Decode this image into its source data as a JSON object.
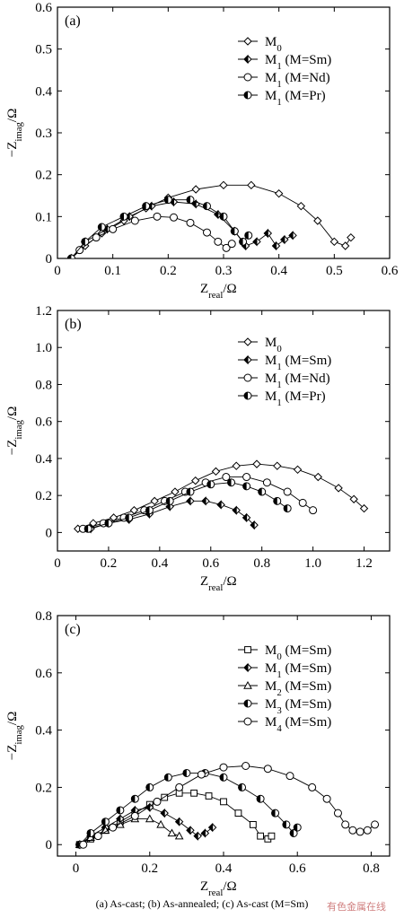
{
  "caption": "(a)   As-cast; (b) As-annealed; (c) As-cast (M=Sm)",
  "watermark": "有色金属在线",
  "chart_data": [
    {
      "type": "line",
      "panel_label": "(a)",
      "xlim": [
        0,
        0.6
      ],
      "ylim": [
        0,
        0.6
      ],
      "xticks": [
        "0",
        "0.1",
        "0.2",
        "0.3",
        "0.4",
        "0.5",
        "0.6"
      ],
      "yticks": [
        "0",
        "0.1",
        "0.2",
        "0.3",
        "0.4",
        "0.5",
        "0.6"
      ],
      "xtick_vals": [
        0,
        0.1,
        0.2,
        0.3,
        0.4,
        0.5,
        0.6
      ],
      "ytick_vals": [
        0,
        0.1,
        0.2,
        0.3,
        0.4,
        0.5,
        0.6
      ],
      "xlabel": {
        "main": "Z",
        "sub": "real",
        "tail": "/Ω"
      },
      "ylabel": {
        "main": "−Z",
        "sub": "imag",
        "tail": "/Ω"
      },
      "legend_position": "top-right",
      "series": [
        {
          "name": "M0",
          "legend": {
            "main": "M",
            "sub": "0",
            "tail": ""
          },
          "marker": "diamond",
          "x": [
            0.025,
            0.05,
            0.08,
            0.12,
            0.16,
            0.2,
            0.25,
            0.3,
            0.35,
            0.4,
            0.44,
            0.47,
            0.5,
            0.52,
            0.53
          ],
          "y": [
            0.0,
            0.03,
            0.06,
            0.09,
            0.12,
            0.145,
            0.165,
            0.175,
            0.175,
            0.155,
            0.125,
            0.09,
            0.04,
            0.03,
            0.05
          ]
        },
        {
          "name": "M1 (M=Sm)",
          "legend": {
            "main": "M",
            "sub": "1",
            "tail": " (M=Sm)"
          },
          "marker": "diamond-half",
          "x": [
            0.025,
            0.05,
            0.09,
            0.13,
            0.17,
            0.21,
            0.25,
            0.29,
            0.32,
            0.34,
            0.36,
            0.38,
            0.395,
            0.41,
            0.425
          ],
          "y": [
            0.0,
            0.04,
            0.07,
            0.1,
            0.125,
            0.135,
            0.13,
            0.105,
            0.065,
            0.03,
            0.04,
            0.06,
            0.03,
            0.045,
            0.055
          ]
        },
        {
          "name": "M1 (M=Nd)",
          "legend": {
            "main": "M",
            "sub": "1",
            "tail": " (M=Nd)"
          },
          "marker": "circle",
          "x": [
            0.025,
            0.04,
            0.07,
            0.1,
            0.14,
            0.18,
            0.21,
            0.24,
            0.27,
            0.29,
            0.305,
            0.315
          ],
          "y": [
            0.0,
            0.02,
            0.05,
            0.07,
            0.09,
            0.1,
            0.098,
            0.085,
            0.062,
            0.04,
            0.025,
            0.035
          ]
        },
        {
          "name": "M1 (M=Pr)",
          "legend": {
            "main": "M",
            "sub": "1",
            "tail": " (M=Pr)"
          },
          "marker": "circle-half",
          "x": [
            0.025,
            0.05,
            0.08,
            0.12,
            0.16,
            0.2,
            0.24,
            0.27,
            0.3,
            0.32,
            0.335,
            0.345
          ],
          "y": [
            0.0,
            0.04,
            0.075,
            0.1,
            0.125,
            0.14,
            0.14,
            0.125,
            0.1,
            0.065,
            0.04,
            0.055
          ]
        }
      ]
    },
    {
      "type": "line",
      "panel_label": "(b)",
      "xlim": [
        0,
        1.3
      ],
      "ylim": [
        -0.1,
        1.2
      ],
      "xticks": [
        "0",
        "0.2",
        "0.4",
        "0.6",
        "0.8",
        "1.0",
        "1.2"
      ],
      "yticks": [
        "0",
        "0.2",
        "0.4",
        "0.6",
        "0.8",
        "1.0",
        "1.2"
      ],
      "xtick_vals": [
        0,
        0.2,
        0.4,
        0.6,
        0.8,
        1.0,
        1.2
      ],
      "ytick_vals": [
        0,
        0.2,
        0.4,
        0.6,
        0.8,
        1.0,
        1.2
      ],
      "xlabel": {
        "main": "Z",
        "sub": "real",
        "tail": "/Ω"
      },
      "ylabel": {
        "main": "−Z",
        "sub": "imag",
        "tail": "/Ω"
      },
      "legend_position": "top-right",
      "series": [
        {
          "name": "M0",
          "legend": {
            "main": "M",
            "sub": "0",
            "tail": ""
          },
          "marker": "diamond",
          "x": [
            0.08,
            0.14,
            0.22,
            0.3,
            0.38,
            0.46,
            0.54,
            0.62,
            0.7,
            0.78,
            0.86,
            0.94,
            1.02,
            1.1,
            1.16,
            1.2
          ],
          "y": [
            0.02,
            0.05,
            0.08,
            0.12,
            0.17,
            0.22,
            0.28,
            0.33,
            0.36,
            0.37,
            0.36,
            0.34,
            0.3,
            0.24,
            0.18,
            0.13
          ]
        },
        {
          "name": "M1 (M=Sm)",
          "legend": {
            "main": "M",
            "sub": "1",
            "tail": " (M=Sm)"
          },
          "marker": "diamond-half",
          "x": [
            0.13,
            0.2,
            0.28,
            0.36,
            0.44,
            0.52,
            0.58,
            0.64,
            0.7,
            0.74,
            0.77
          ],
          "y": [
            0.02,
            0.05,
            0.07,
            0.1,
            0.14,
            0.17,
            0.17,
            0.15,
            0.12,
            0.08,
            0.04
          ]
        },
        {
          "name": "M1 (M=Nd)",
          "legend": {
            "main": "M",
            "sub": "1",
            "tail": " (M=Nd)"
          },
          "marker": "circle",
          "x": [
            0.1,
            0.18,
            0.26,
            0.34,
            0.42,
            0.5,
            0.58,
            0.66,
            0.74,
            0.82,
            0.9,
            0.96,
            1.0
          ],
          "y": [
            0.02,
            0.05,
            0.08,
            0.12,
            0.17,
            0.22,
            0.27,
            0.3,
            0.3,
            0.27,
            0.22,
            0.16,
            0.12
          ]
        },
        {
          "name": "M1 (M=Pr)",
          "legend": {
            "main": "M",
            "sub": "1",
            "tail": " (M=Pr)"
          },
          "marker": "circle-half",
          "x": [
            0.12,
            0.2,
            0.28,
            0.36,
            0.44,
            0.52,
            0.6,
            0.68,
            0.74,
            0.8,
            0.86,
            0.9
          ],
          "y": [
            0.02,
            0.05,
            0.08,
            0.12,
            0.17,
            0.22,
            0.26,
            0.27,
            0.25,
            0.22,
            0.17,
            0.13
          ]
        }
      ]
    },
    {
      "type": "line",
      "panel_label": "(c)",
      "xlim": [
        -0.05,
        0.85
      ],
      "ylim": [
        -0.04,
        0.8
      ],
      "xticks": [
        "0",
        "0.2",
        "0.4",
        "0.6",
        "0.8"
      ],
      "yticks": [
        "0",
        "0.2",
        "0.4",
        "0.6",
        "0.8"
      ],
      "xtick_vals": [
        0,
        0.2,
        0.4,
        0.6,
        0.8
      ],
      "ytick_vals": [
        0,
        0.2,
        0.4,
        0.6,
        0.8
      ],
      "xlabel": {
        "main": "Z",
        "sub": "real",
        "tail": "/Ω"
      },
      "ylabel": {
        "main": "−Z",
        "sub": "imag",
        "tail": "/Ω"
      },
      "legend_position": "right",
      "series": [
        {
          "name": "M0 (M=Sm)",
          "legend": {
            "main": "M",
            "sub": "0",
            "tail": " (M=Sm)"
          },
          "marker": "square",
          "x": [
            0.01,
            0.04,
            0.08,
            0.12,
            0.16,
            0.2,
            0.24,
            0.28,
            0.32,
            0.36,
            0.4,
            0.44,
            0.48,
            0.5,
            0.52,
            0.53
          ],
          "y": [
            0.0,
            0.02,
            0.05,
            0.08,
            0.11,
            0.14,
            0.165,
            0.18,
            0.18,
            0.17,
            0.15,
            0.11,
            0.07,
            0.03,
            0.02,
            0.03
          ]
        },
        {
          "name": "M1 (M=Sm)",
          "legend": {
            "main": "M",
            "sub": "1",
            "tail": " (M=Sm)"
          },
          "marker": "diamond-half",
          "x": [
            0.01,
            0.04,
            0.08,
            0.12,
            0.16,
            0.2,
            0.24,
            0.28,
            0.31,
            0.33,
            0.35,
            0.37
          ],
          "y": [
            0.0,
            0.03,
            0.06,
            0.09,
            0.12,
            0.13,
            0.11,
            0.08,
            0.05,
            0.03,
            0.04,
            0.06
          ]
        },
        {
          "name": "M2 (M=Sm)",
          "legend": {
            "main": "M",
            "sub": "2",
            "tail": " (M=Sm)"
          },
          "marker": "triangle",
          "x": [
            0.01,
            0.04,
            0.08,
            0.12,
            0.16,
            0.2,
            0.23,
            0.26,
            0.28
          ],
          "y": [
            0.0,
            0.025,
            0.05,
            0.07,
            0.09,
            0.09,
            0.07,
            0.04,
            0.03
          ]
        },
        {
          "name": "M3 (M=Sm)",
          "legend": {
            "main": "M",
            "sub": "3",
            "tail": " (M=Sm)"
          },
          "marker": "circle-half",
          "x": [
            0.01,
            0.04,
            0.08,
            0.12,
            0.16,
            0.2,
            0.25,
            0.3,
            0.35,
            0.4,
            0.45,
            0.5,
            0.54,
            0.57,
            0.59,
            0.6
          ],
          "y": [
            0.0,
            0.04,
            0.08,
            0.12,
            0.16,
            0.2,
            0.235,
            0.25,
            0.25,
            0.235,
            0.2,
            0.16,
            0.11,
            0.07,
            0.04,
            0.06
          ]
        },
        {
          "name": "M4 (M=Sm)",
          "legend": {
            "main": "M",
            "sub": "4",
            "tail": " (M=Sm)"
          },
          "marker": "circle",
          "x": [
            0.02,
            0.06,
            0.1,
            0.16,
            0.22,
            0.28,
            0.34,
            0.4,
            0.46,
            0.52,
            0.58,
            0.64,
            0.68,
            0.71,
            0.73,
            0.75,
            0.77,
            0.79,
            0.81
          ],
          "y": [
            0.0,
            0.03,
            0.06,
            0.1,
            0.15,
            0.2,
            0.245,
            0.27,
            0.275,
            0.265,
            0.24,
            0.2,
            0.16,
            0.11,
            0.07,
            0.05,
            0.045,
            0.05,
            0.07
          ]
        }
      ]
    }
  ]
}
